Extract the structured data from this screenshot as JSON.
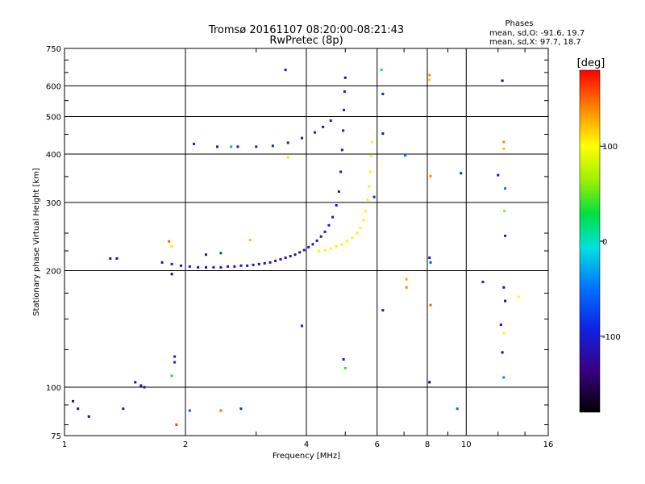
{
  "chart_data": {
    "type": "scatter",
    "title": "Tromsø 20161107 08:20:00-08:21:43",
    "subtitle": "RwPretec (8p)",
    "xlabel": "Frequency [MHz]",
    "ylabel": "Stationary phase Virtual Height [km]",
    "x_scale": "log",
    "y_scale": "log",
    "xlim": [
      1,
      16
    ],
    "ylim": [
      75,
      750
    ],
    "x_ticks": [
      1,
      2,
      4,
      6,
      8,
      10,
      16
    ],
    "x_tick_labels": [
      "1",
      "2",
      "4",
      "6",
      "8",
      "10",
      "16"
    ],
    "y_ticks": [
      75,
      100,
      200,
      300,
      400,
      500,
      600,
      750
    ],
    "y_tick_labels": [
      "75",
      "100",
      "200",
      "300",
      "400",
      "500",
      "600",
      "750"
    ],
    "grid": true,
    "phase_info": {
      "header": "Phases",
      "o_line": "mean, sd,O: -91.6, 19.7",
      "x_line": "mean, sd,X:  97.7, 18.7"
    },
    "colorbar": {
      "label": "[deg]",
      "range": [
        -180,
        180
      ],
      "ticks": [
        100,
        0,
        -100
      ],
      "tick_labels": [
        "100",
        "0",
        "-100"
      ]
    },
    "series": [
      {
        "trace": "o-mode",
        "phase": -110,
        "points": [
          [
            1.75,
            210
          ],
          [
            1.85,
            208
          ],
          [
            1.95,
            206
          ],
          [
            2.05,
            205
          ],
          [
            2.15,
            204
          ],
          [
            2.25,
            204
          ],
          [
            2.35,
            204
          ],
          [
            2.45,
            204
          ],
          [
            2.55,
            205
          ],
          [
            2.65,
            205
          ],
          [
            2.75,
            206
          ],
          [
            2.85,
            206
          ],
          [
            2.95,
            207
          ],
          [
            3.05,
            208
          ],
          [
            3.15,
            209
          ],
          [
            3.25,
            210
          ],
          [
            3.35,
            212
          ],
          [
            3.45,
            214
          ],
          [
            3.55,
            216
          ],
          [
            3.65,
            218
          ],
          [
            3.75,
            220
          ],
          [
            3.85,
            223
          ],
          [
            3.95,
            226
          ],
          [
            4.05,
            230
          ],
          [
            4.15,
            234
          ],
          [
            4.25,
            239
          ],
          [
            4.35,
            245
          ],
          [
            4.45,
            252
          ],
          [
            4.55,
            262
          ],
          [
            4.65,
            275
          ],
          [
            4.75,
            295
          ],
          [
            4.82,
            320
          ],
          [
            4.87,
            360
          ],
          [
            4.91,
            410
          ],
          [
            4.94,
            460
          ],
          [
            4.96,
            520
          ],
          [
            4.98,
            580
          ],
          [
            5.0,
            630
          ]
        ]
      },
      {
        "trace": "x-mode",
        "phase": 95,
        "points": [
          [
            4.3,
            225
          ],
          [
            4.45,
            226
          ],
          [
            4.6,
            228
          ],
          [
            4.75,
            231
          ],
          [
            4.9,
            234
          ],
          [
            5.05,
            238
          ],
          [
            5.2,
            243
          ],
          [
            5.35,
            250
          ],
          [
            5.45,
            258
          ],
          [
            5.55,
            270
          ],
          [
            5.62,
            285
          ],
          [
            5.68,
            305
          ],
          [
            5.73,
            330
          ],
          [
            5.77,
            360
          ],
          [
            5.8,
            395
          ],
          [
            5.83,
            430
          ]
        ]
      },
      {
        "trace": "upper-branch",
        "phase": -105,
        "points": [
          [
            2.1,
            425
          ],
          [
            2.4,
            418
          ],
          [
            2.7,
            418
          ],
          [
            3.0,
            418
          ],
          [
            3.3,
            420
          ],
          [
            3.6,
            428
          ],
          [
            3.9,
            440
          ],
          [
            4.2,
            455
          ],
          [
            4.4,
            470
          ],
          [
            4.6,
            488
          ]
        ]
      },
      {
        "trace": "low-echoes",
        "phase": -120,
        "points": [
          [
            1.05,
            92
          ],
          [
            1.08,
            88
          ],
          [
            1.15,
            84
          ],
          [
            1.3,
            215
          ],
          [
            1.35,
            215
          ],
          [
            1.4,
            88
          ],
          [
            1.5,
            103
          ],
          [
            1.55,
            101
          ],
          [
            1.58,
            100
          ]
        ]
      },
      {
        "trace": "scattered",
        "phase": 0,
        "points": [
          [
            3.55,
            660,
            -120
          ],
          [
            3.6,
            392,
            110
          ],
          [
            4.95,
            118,
            -100
          ],
          [
            5.0,
            112,
            40
          ],
          [
            5.9,
            310,
            -90
          ],
          [
            6.15,
            660,
            20
          ],
          [
            6.2,
            572,
            -95
          ],
          [
            6.2,
            452,
            -110
          ],
          [
            6.2,
            158,
            -120
          ],
          [
            7.05,
            397,
            -60
          ],
          [
            7.1,
            190,
            130
          ],
          [
            7.1,
            181,
            140
          ],
          [
            8.1,
            640,
            140
          ],
          [
            8.1,
            622,
            120
          ],
          [
            8.15,
            351,
            140
          ],
          [
            8.1,
            216,
            -110
          ],
          [
            8.15,
            210,
            -70
          ],
          [
            8.15,
            163,
            150
          ],
          [
            8.1,
            103,
            -160
          ],
          [
            9.5,
            88,
            -60
          ],
          [
            9.7,
            357,
            -90
          ],
          [
            11.0,
            187,
            -110
          ],
          [
            12.0,
            353,
            -110
          ],
          [
            12.3,
            619,
            -150
          ],
          [
            12.4,
            430,
            140
          ],
          [
            12.4,
            413,
            120
          ],
          [
            12.5,
            326,
            -50
          ],
          [
            12.45,
            285,
            60
          ],
          [
            12.5,
            246,
            -100
          ],
          [
            12.4,
            181,
            -120
          ],
          [
            12.5,
            167,
            -140
          ],
          [
            12.2,
            145,
            -130
          ],
          [
            12.4,
            138,
            100
          ],
          [
            12.3,
            123,
            -140
          ],
          [
            12.4,
            106,
            -40
          ],
          [
            13.5,
            171,
            100
          ],
          [
            1.82,
            238,
            150
          ],
          [
            1.85,
            231,
            110
          ],
          [
            1.85,
            196,
            -150
          ],
          [
            1.88,
            120,
            -100
          ],
          [
            1.88,
            116,
            -90
          ],
          [
            1.85,
            107,
            30
          ],
          [
            1.9,
            80,
            160
          ],
          [
            2.05,
            87,
            -70
          ],
          [
            2.45,
            87,
            150
          ],
          [
            2.75,
            88,
            -90
          ],
          [
            2.9,
            240,
            120
          ],
          [
            2.25,
            220,
            -100
          ],
          [
            2.45,
            222,
            -80
          ],
          [
            2.6,
            418,
            -30
          ],
          [
            3.9,
            144,
            -110
          ]
        ]
      }
    ]
  }
}
